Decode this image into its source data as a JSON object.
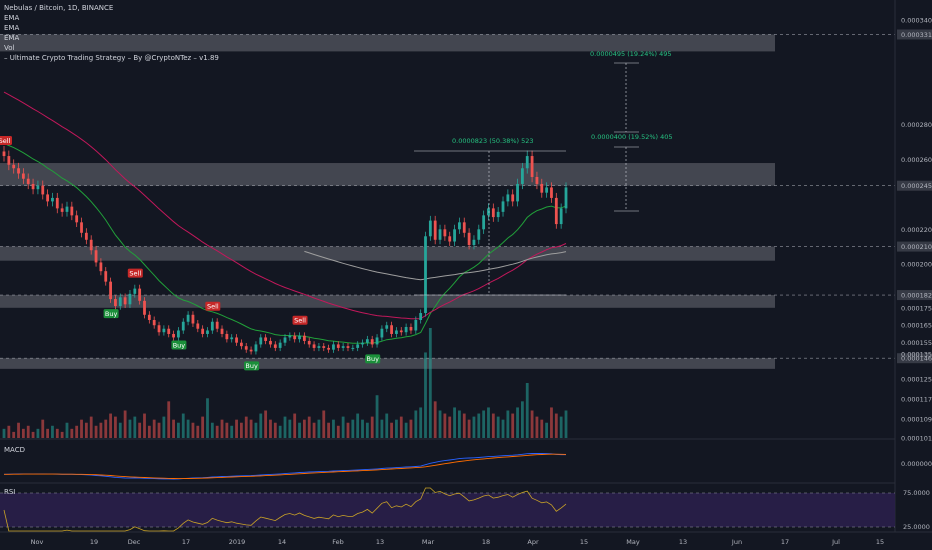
{
  "legend": {
    "title": "Nebulas / Bitcoin, 1D, BINANCE",
    "lines": [
      "EMA",
      "EMA",
      "EMA",
      "Vol",
      "– Ultimate Crypto Trading Strategy – By @CryptoNTez – v1.89"
    ]
  },
  "panes": {
    "macd_label": "MACD",
    "rsi_label": "RSI"
  },
  "price_axis": {
    "ticks": [
      "0.0003400",
      "0.0003317",
      "0.0002800",
      "0.0002600",
      "0.0002450",
      "0.0002200",
      "0.0002101",
      "0.0002000",
      "0.0001823",
      "0.0001750",
      "0.0001650",
      "0.0001550",
      "0.0001461",
      "0.0001350",
      "0.0001250",
      "0.0001170",
      "0.0001090",
      "0.0001015"
    ],
    "macd_tick": "0.0000000",
    "rsi_ticks": [
      "75.0000",
      "25.0000"
    ]
  },
  "time_axis": [
    "Nov",
    "19",
    "Dec",
    "17",
    "2019",
    "14",
    "Feb",
    "13",
    "Mar",
    "18",
    "Apr",
    "15",
    "May",
    "13",
    "Jun",
    "17",
    "Jul",
    "15"
  ],
  "annotations": {
    "measure_1": "0.0000823 (50.38%) 523",
    "measure_2": "0.0000400 (19.52%) 405",
    "measure_3": "0.0000495 (19.24%) 495"
  },
  "signals": [
    {
      "label": "Sell",
      "kind": "sell",
      "i": 0
    },
    {
      "label": "Sell",
      "kind": "sell",
      "i": 27
    },
    {
      "label": "Buy",
      "kind": "buy",
      "i": 22
    },
    {
      "label": "Buy",
      "kind": "buy",
      "i": 36
    },
    {
      "label": "Sell",
      "kind": "sell",
      "i": 43
    },
    {
      "label": "Buy",
      "kind": "buy",
      "i": 51
    },
    {
      "label": "Sell",
      "kind": "sell",
      "i": 61
    },
    {
      "label": "Buy",
      "kind": "buy",
      "i": 76
    }
  ],
  "colors": {
    "background": "#131722",
    "up": "#26a69a",
    "down": "#ef5350",
    "ema_fast": "#21a13a",
    "ema_slow": "#c2185b",
    "ema_long": "#9e9e9e",
    "zone": "#6b6e76",
    "buy": "#1b8f3a",
    "sell": "#c62828",
    "measure": "#26c281"
  },
  "chart_data": {
    "type": "candlestick",
    "title": "Nebulas / Bitcoin, 1D, BINANCE",
    "series": [
      {
        "name": "Nebulas / Bitcoin",
        "close": [
          0.000262,
          0.000257,
          0.000255,
          0.000252,
          0.000249,
          0.000246,
          0.000243,
          0.000245,
          0.00024,
          0.000236,
          0.000238,
          0.000232,
          0.00023,
          0.000233,
          0.000228,
          0.000224,
          0.000218,
          0.000214,
          0.000208,
          0.000201,
          0.000196,
          0.00019,
          0.00018,
          0.000176,
          0.000181,
          0.000177,
          0.000183,
          0.000186,
          0.000179,
          0.000171,
          0.000168,
          0.000165,
          0.000161,
          0.000163,
          0.00016,
          0.000158,
          0.000162,
          0.000167,
          0.000171,
          0.000166,
          0.000163,
          0.00016,
          0.000162,
          0.000167,
          0.000163,
          0.00016,
          0.000157,
          0.000158,
          0.000155,
          0.000153,
          0.000151,
          0.00015,
          0.000154,
          0.000158,
          0.000156,
          0.000154,
          0.000152,
          0.000155,
          0.000158,
          0.000159,
          0.000157,
          0.000159,
          0.000156,
          0.000154,
          0.000152,
          0.000153,
          0.000152,
          0.000151,
          0.000154,
          0.000152,
          0.000153,
          0.000152,
          0.000152,
          0.000154,
          0.000155,
          0.000157,
          0.000154,
          0.000158,
          0.000163,
          0.000165,
          0.00016,
          0.000162,
          0.000161,
          0.000164,
          0.000162,
          0.000168,
          0.000172,
          0.000216,
          0.000225,
          0.000214,
          0.00022,
          0.000216,
          0.000213,
          0.00022,
          0.000224,
          0.000218,
          0.000211,
          0.000214,
          0.00022,
          0.000228,
          0.000232,
          0.000227,
          0.00023,
          0.000236,
          0.00024,
          0.000236,
          0.000246,
          0.000255,
          0.000262,
          0.00025,
          0.000246,
          0.000241,
          0.000244,
          0.000238,
          0.000223,
          0.000232,
          0.000244
        ],
        "volume": [
          3,
          4,
          2,
          5,
          3,
          4,
          2,
          3,
          6,
          3,
          4,
          3,
          2,
          5,
          3,
          4,
          6,
          5,
          7,
          4,
          5,
          6,
          8,
          7,
          5,
          9,
          6,
          7,
          5,
          8,
          4,
          6,
          5,
          7,
          12,
          6,
          5,
          8,
          6,
          5,
          4,
          7,
          13,
          5,
          4,
          6,
          5,
          4,
          6,
          5,
          7,
          6,
          5,
          8,
          9,
          6,
          5,
          4,
          7,
          6,
          8,
          5,
          6,
          7,
          5,
          6,
          9,
          5,
          6,
          4,
          7,
          5,
          6,
          8,
          6,
          5,
          7,
          14,
          6,
          8,
          5,
          6,
          7,
          5,
          6,
          9,
          10,
          28,
          36,
          12,
          9,
          8,
          7,
          10,
          9,
          8,
          6,
          7,
          8,
          9,
          10,
          8,
          7,
          6,
          9,
          8,
          10,
          12,
          18,
          9,
          7,
          6,
          5,
          10,
          8,
          7,
          9
        ],
        "volume_unit": "relative"
      }
    ],
    "ylim": [
      0.0001015,
      0.00034
    ],
    "xlabel": "",
    "ylabel": "",
    "grid": false,
    "legend": "top-left",
    "zones": [
      [
        0.0003317,
        0.000322
      ],
      [
        0.000258,
        0.000245
      ],
      [
        0.0002101,
        0.000202
      ],
      [
        0.0001823,
        0.000175
      ],
      [
        0.0001461,
        0.00014
      ]
    ]
  }
}
